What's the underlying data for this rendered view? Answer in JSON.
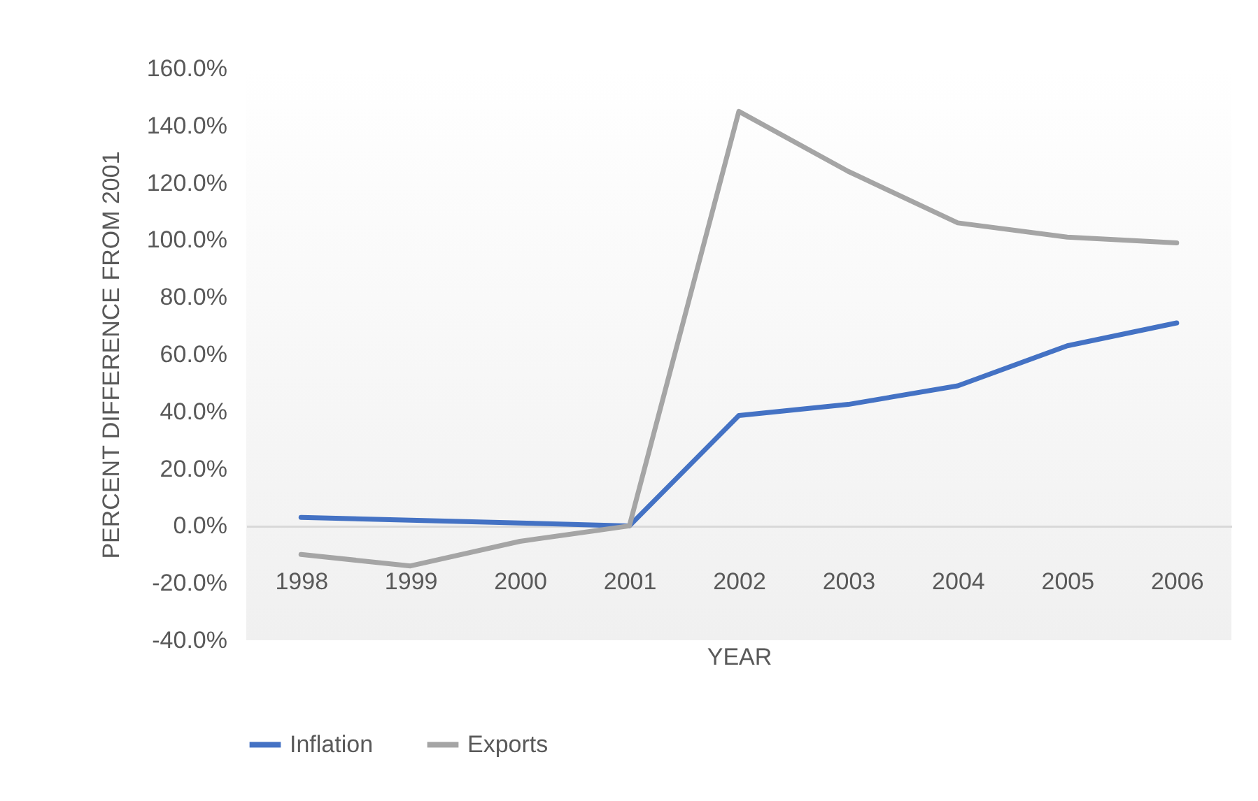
{
  "chart_data": {
    "type": "line",
    "xlabel": "YEAR",
    "ylabel": "PERCENT DIFFERENCE FROM 2001",
    "categories": [
      "1998",
      "1999",
      "2000",
      "2001",
      "2002",
      "2003",
      "2004",
      "2005",
      "2006"
    ],
    "series": [
      {
        "name": "Inflation",
        "color": "#4472c4",
        "values": [
          3,
          2,
          1,
          0,
          38.6,
          42.5,
          49,
          63,
          71
        ]
      },
      {
        "name": "Exports",
        "color": "#a5a5a5",
        "values": [
          -10,
          -14,
          -5.4,
          0,
          145,
          124,
          106,
          101,
          99
        ]
      }
    ],
    "ylim": [
      -40,
      160
    ],
    "yticks": [
      {
        "value": -40,
        "label": "-40.0%"
      },
      {
        "value": -20,
        "label": "-20.0%"
      },
      {
        "value": 0,
        "label": "0.0%"
      },
      {
        "value": 20,
        "label": "20.0%"
      },
      {
        "value": 40,
        "label": "40.0%"
      },
      {
        "value": 60,
        "label": "60.0%"
      },
      {
        "value": 80,
        "label": "80.0%"
      },
      {
        "value": 100,
        "label": "100.0%"
      },
      {
        "value": 120,
        "label": "120.0%"
      },
      {
        "value": 140,
        "label": "140.0%"
      },
      {
        "value": 160,
        "label": "160.0%"
      }
    ],
    "grid": false,
    "legend": "bottom",
    "line_style": "solid",
    "marker": "none"
  }
}
